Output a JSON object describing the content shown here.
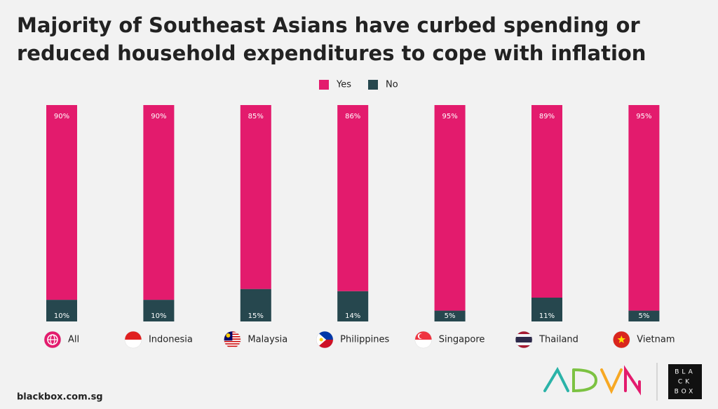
{
  "chart_data": {
    "type": "stacked-bar",
    "title": [
      "Majority of Southeast Asians have curbed spending or",
      "reduced household expenditures to cope with inflation"
    ],
    "categories": [
      "All",
      "Indonesia",
      "Malaysia",
      "Philippines",
      "Singapore",
      "Thailand",
      "Vietnam"
    ],
    "series": [
      {
        "name": "Yes",
        "color": "#e31b6d",
        "values": [
          90,
          90,
          85,
          86,
          95,
          89,
          95
        ],
        "value_labels": [
          "90%",
          "90%",
          "85%",
          "86%",
          "95%",
          "89%",
          "95%"
        ]
      },
      {
        "name": "No",
        "color": "#26474e",
        "values": [
          10,
          10,
          15,
          14,
          5,
          11,
          5
        ],
        "value_labels": [
          "10%",
          "10%",
          "15%",
          "14%",
          "5%",
          "11%",
          "5%"
        ]
      }
    ],
    "ylim": [
      0,
      100
    ],
    "legend": "top"
  },
  "footer": "blackbox.com.sg",
  "logo": [
    "BLA",
    "CK",
    "BOX"
  ]
}
